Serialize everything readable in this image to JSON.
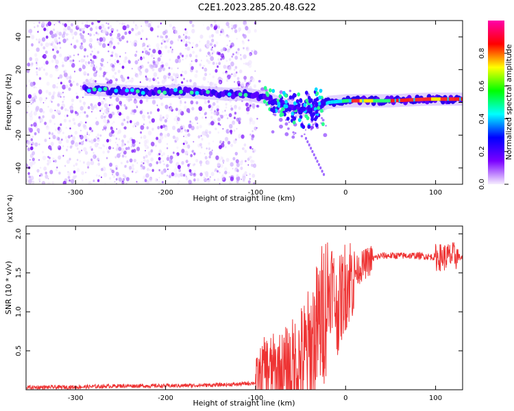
{
  "figure_title": "C2E1.2023.285.20.48.G22",
  "chart_data": [
    {
      "type": "heatmap",
      "xlabel": "Height of straight line (km)",
      "ylabel": "Frequency (Hz)",
      "xlim": [
        -355,
        130
      ],
      "ylim": [
        -50,
        50
      ],
      "x_ticks": [
        -300,
        -200,
        -100,
        0,
        100
      ],
      "y_ticks": [
        -40,
        -20,
        0,
        20,
        40
      ],
      "colorbar": {
        "label": "Normalized spectral amplitude",
        "range": [
          0,
          1
        ],
        "ticks": [
          0.0,
          0.2,
          0.4,
          0.6,
          0.8
        ],
        "colors": [
          "#f6eefe",
          "#7a00ff",
          "#0000ff",
          "#00ffff",
          "#00ff00",
          "#ffff00",
          "#ff0000",
          "#ff00aa"
        ]
      },
      "ridge": {
        "x": [
          -280,
          -250,
          -220,
          -190,
          -160,
          -130,
          -110,
          -90,
          -75,
          -60,
          -50,
          -40,
          -30,
          -20,
          0,
          50,
          90,
          130
        ],
        "y": [
          8,
          7,
          6,
          7,
          6,
          5,
          5,
          3,
          0,
          -3,
          -5,
          -4,
          -3,
          0,
          1,
          1,
          2,
          2
        ]
      }
    },
    {
      "type": "line",
      "xlabel": "Height of straight line (km)",
      "ylabel": "SNR (10 * v/v)",
      "y_multiplier": "(x10^4)",
      "xlim": [
        -355,
        130
      ],
      "ylim": [
        0,
        21000
      ],
      "x_ticks": [
        -300,
        -200,
        -100,
        0,
        100
      ],
      "y_ticks": [
        0.5,
        1.0,
        1.5,
        2.0
      ],
      "color": "#ee3333",
      "series": [
        {
          "x": [
            -355,
            -300,
            -250,
            -200,
            -150,
            -120,
            -100,
            -90,
            -80,
            -70,
            -60,
            -50,
            -40,
            -30,
            -20,
            -15,
            -10,
            0,
            10,
            20,
            30,
            40,
            60,
            80,
            100,
            110,
            120,
            130
          ],
          "y": [
            300,
            350,
            500,
            500,
            600,
            700,
            900,
            3000,
            2500,
            2000,
            2500,
            3500,
            5000,
            8000,
            12000,
            14000,
            10000,
            13500,
            15000,
            16000,
            16800,
            17200,
            17200,
            17200,
            17000,
            17000,
            17200,
            16900
          ]
        }
      ]
    }
  ]
}
